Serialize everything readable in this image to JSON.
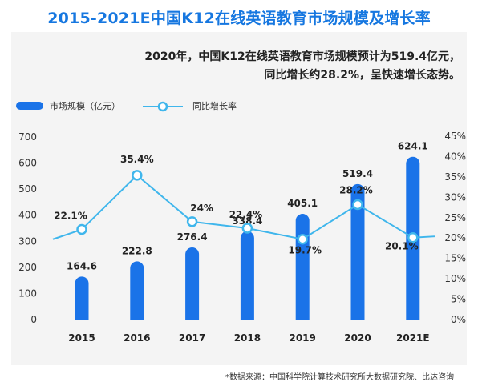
{
  "chart_data": {
    "type": "bar+line",
    "title": "2015-2021E中国K12在线英语教育市场规模及增长率",
    "subtitle_lines": [
      "2020年，中国K12在线英语教育市场规模预计为519.4亿元，",
      "同比增长约28.2%，呈快速增长态势。"
    ],
    "categories": [
      "2015",
      "2016",
      "2017",
      "2018",
      "2019",
      "2020",
      "2021E"
    ],
    "series": [
      {
        "name": "市场规模（亿元）",
        "type": "bar",
        "axis": "left",
        "values": [
          164.6,
          222.8,
          276.4,
          338.4,
          405.1,
          519.4,
          624.1
        ],
        "labels": [
          "164.6",
          "222.8",
          "276.4",
          "338.4",
          "405.1",
          "519.4",
          "624.1"
        ],
        "color": "#1a73e8"
      },
      {
        "name": "同比增长率",
        "type": "line",
        "axis": "right",
        "values": [
          22.1,
          35.4,
          24.0,
          22.4,
          19.7,
          28.2,
          20.1
        ],
        "labels": [
          "22.1%",
          "35.4%",
          "24%",
          "22.4%",
          "19.7%",
          "28.2%",
          "20.1%"
        ],
        "color": "#3fb6ec"
      }
    ],
    "y_left": {
      "range": [
        0,
        700
      ],
      "ticks": [
        "0",
        "100",
        "200",
        "300",
        "400",
        "500",
        "600",
        "700"
      ]
    },
    "y_right": {
      "range": [
        0,
        45
      ],
      "ticks": [
        "0%",
        "5%",
        "10%",
        "15%",
        "20%",
        "25%",
        "30%",
        "35%",
        "40%",
        "45%"
      ]
    },
    "line_edge_values": [
      19.7,
      20.4
    ],
    "legend_position": "top-left",
    "grid": false,
    "source": "*数据来源：中国科学院计算技术研究所大数据研究院、比达咨询"
  }
}
